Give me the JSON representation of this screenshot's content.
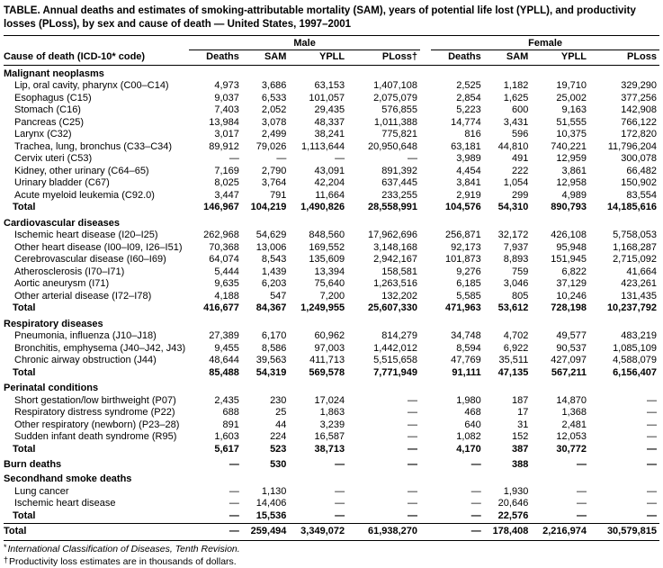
{
  "title": "TABLE. Annual deaths and estimates of smoking-attributable mortality (SAM), years of potential life lost (YPLL), and productivity losses (PLoss), by sex and cause of death — United States, 1997–2001",
  "table": {
    "header": {
      "cause": "Cause of death (ICD-10* code)",
      "male": "Male",
      "female": "Female",
      "cols_male": [
        "Deaths",
        "SAM",
        "YPLL",
        "PLoss†"
      ],
      "cols_female": [
        "Deaths",
        "SAM",
        "YPLL",
        "PLoss"
      ]
    },
    "rows": [
      {
        "type": "section",
        "label": "Malignant neoplasms",
        "values": null
      },
      {
        "type": "item",
        "label": "Lip, oral cavity, pharynx (C00–C14)",
        "values": [
          "4,973",
          "3,686",
          "63,153",
          "1,407,108",
          "2,525",
          "1,182",
          "19,710",
          "329,290"
        ]
      },
      {
        "type": "item",
        "label": "Esophagus (C15)",
        "values": [
          "9,037",
          "6,533",
          "101,057",
          "2,075,079",
          "2,854",
          "1,625",
          "25,002",
          "377,256"
        ]
      },
      {
        "type": "item",
        "label": "Stomach (C16)",
        "values": [
          "7,403",
          "2,052",
          "29,435",
          "576,855",
          "5,223",
          "600",
          "9,163",
          "142,908"
        ]
      },
      {
        "type": "item",
        "label": "Pancreas (C25)",
        "values": [
          "13,984",
          "3,078",
          "48,337",
          "1,011,388",
          "14,774",
          "3,431",
          "51,555",
          "766,122"
        ]
      },
      {
        "type": "item",
        "label": "Larynx (C32)",
        "values": [
          "3,017",
          "2,499",
          "38,241",
          "775,821",
          "816",
          "596",
          "10,375",
          "172,820"
        ]
      },
      {
        "type": "item",
        "label": "Trachea, lung, bronchus (C33–C34)",
        "values": [
          "89,912",
          "79,026",
          "1,113,644",
          "20,950,648",
          "63,181",
          "44,810",
          "740,221",
          "11,796,204"
        ]
      },
      {
        "type": "item",
        "label": "Cervix uteri (C53)",
        "values": [
          "—",
          "—",
          "—",
          "—",
          "3,989",
          "491",
          "12,959",
          "300,078"
        ]
      },
      {
        "type": "item",
        "label": "Kidney, other urinary (C64–65)",
        "values": [
          "7,169",
          "2,790",
          "43,091",
          "891,392",
          "4,454",
          "222",
          "3,861",
          "66,482"
        ]
      },
      {
        "type": "item",
        "label": "Urinary bladder (C67)",
        "values": [
          "8,025",
          "3,764",
          "42,204",
          "637,445",
          "3,841",
          "1,054",
          "12,958",
          "150,902"
        ]
      },
      {
        "type": "item",
        "label": "Acute myeloid leukemia (C92.0)",
        "values": [
          "3,447",
          "791",
          "11,664",
          "233,255",
          "2,919",
          "299",
          "4,989",
          "83,554"
        ]
      },
      {
        "type": "total",
        "label": "Total",
        "values": [
          "146,967",
          "104,219",
          "1,490,826",
          "28,558,991",
          "104,576",
          "54,310",
          "890,793",
          "14,185,616"
        ]
      },
      {
        "type": "section",
        "label": "Cardiovascular diseases",
        "values": null
      },
      {
        "type": "item",
        "label": "Ischemic heart disease (I20–I25)",
        "values": [
          "262,968",
          "54,629",
          "848,560",
          "17,962,696",
          "256,871",
          "32,172",
          "426,108",
          "5,758,053"
        ]
      },
      {
        "type": "item",
        "label": "Other heart disease (I00–I09, I26–I51)",
        "values": [
          "70,368",
          "13,006",
          "169,552",
          "3,148,168",
          "92,173",
          "7,937",
          "95,948",
          "1,168,287"
        ]
      },
      {
        "type": "item",
        "label": "Cerebrovascular disease (I60–I69)",
        "values": [
          "64,074",
          "8,543",
          "135,609",
          "2,942,167",
          "101,873",
          "8,893",
          "151,945",
          "2,715,092"
        ]
      },
      {
        "type": "item",
        "label": "Atherosclerosis (I70–I71)",
        "values": [
          "5,444",
          "1,439",
          "13,394",
          "158,581",
          "9,276",
          "759",
          "6,822",
          "41,664"
        ]
      },
      {
        "type": "item",
        "label": "Aortic aneurysm (I71)",
        "values": [
          "9,635",
          "6,203",
          "75,640",
          "1,263,516",
          "6,185",
          "3,046",
          "37,129",
          "423,261"
        ]
      },
      {
        "type": "item",
        "label": "Other arterial disease (I72–I78)",
        "values": [
          "4,188",
          "547",
          "7,200",
          "132,202",
          "5,585",
          "805",
          "10,246",
          "131,435"
        ]
      },
      {
        "type": "total",
        "label": "Total",
        "values": [
          "416,677",
          "84,367",
          "1,249,955",
          "25,607,330",
          "471,963",
          "53,612",
          "728,198",
          "10,237,792"
        ]
      },
      {
        "type": "section",
        "label": "Respiratory diseases",
        "values": null
      },
      {
        "type": "item",
        "label": "Pneumonia, influenza (J10–J18)",
        "values": [
          "27,389",
          "6,170",
          "60,962",
          "814,279",
          "34,748",
          "4,702",
          "49,577",
          "483,219"
        ]
      },
      {
        "type": "item",
        "label": "Bronchitis, emphysema (J40–J42, J43)",
        "values": [
          "9,455",
          "8,586",
          "97,003",
          "1,442,012",
          "8,594",
          "6,922",
          "90,537",
          "1,085,109"
        ]
      },
      {
        "type": "item",
        "label": "Chronic airway obstruction (J44)",
        "values": [
          "48,644",
          "39,563",
          "411,713",
          "5,515,658",
          "47,769",
          "35,511",
          "427,097",
          "4,588,079"
        ]
      },
      {
        "type": "total",
        "label": "Total",
        "values": [
          "85,488",
          "54,319",
          "569,578",
          "7,771,949",
          "91,111",
          "47,135",
          "567,211",
          "6,156,407"
        ]
      },
      {
        "type": "section",
        "label": "Perinatal conditions",
        "values": null
      },
      {
        "type": "item",
        "label": "Short gestation/low birthweight (P07)",
        "values": [
          "2,435",
          "230",
          "17,024",
          "—",
          "1,980",
          "187",
          "14,870",
          "—"
        ]
      },
      {
        "type": "item",
        "label": "Respiratory distress syndrome (P22)",
        "values": [
          "688",
          "25",
          "1,863",
          "—",
          "468",
          "17",
          "1,368",
          "—"
        ]
      },
      {
        "type": "item",
        "label": "Other respiratory (newborn) (P23–28)",
        "values": [
          "891",
          "44",
          "3,239",
          "—",
          "640",
          "31",
          "2,481",
          "—"
        ]
      },
      {
        "type": "item",
        "label": "Sudden infant death syndrome (R95)",
        "values": [
          "1,603",
          "224",
          "16,587",
          "—",
          "1,082",
          "152",
          "12,053",
          "—"
        ]
      },
      {
        "type": "total",
        "label": "Total",
        "values": [
          "5,617",
          "523",
          "38,713",
          "—",
          "4,170",
          "387",
          "30,772",
          "—"
        ]
      },
      {
        "type": "section",
        "label": "Burn deaths",
        "values": [
          "—",
          "530",
          "—",
          "—",
          "—",
          "388",
          "—",
          "—"
        ]
      },
      {
        "type": "section",
        "label": "Secondhand smoke deaths",
        "values": null
      },
      {
        "type": "item",
        "label": "Lung cancer",
        "values": [
          "—",
          "1,130",
          "—",
          "—",
          "—",
          "1,930",
          "—",
          "—"
        ]
      },
      {
        "type": "item",
        "label": "Ischemic heart disease",
        "values": [
          "—",
          "14,406",
          "—",
          "—",
          "—",
          "20,646",
          "—",
          "—"
        ]
      },
      {
        "type": "total",
        "label": "Total",
        "values": [
          "—",
          "15,536",
          "—",
          "—",
          "—",
          "22,576",
          "—",
          "—"
        ]
      },
      {
        "type": "grand",
        "label": "Total",
        "values": [
          "—",
          "259,494",
          "3,349,072",
          "61,938,270",
          "—",
          "178,408",
          "2,216,974",
          "30,579,815"
        ]
      }
    ]
  },
  "footnotes": [
    {
      "symbol": "*",
      "text": "International Classification of Diseases, Tenth Revision."
    },
    {
      "symbol": "†",
      "text": "Productivity loss estimates are in thousands of dollars."
    }
  ]
}
